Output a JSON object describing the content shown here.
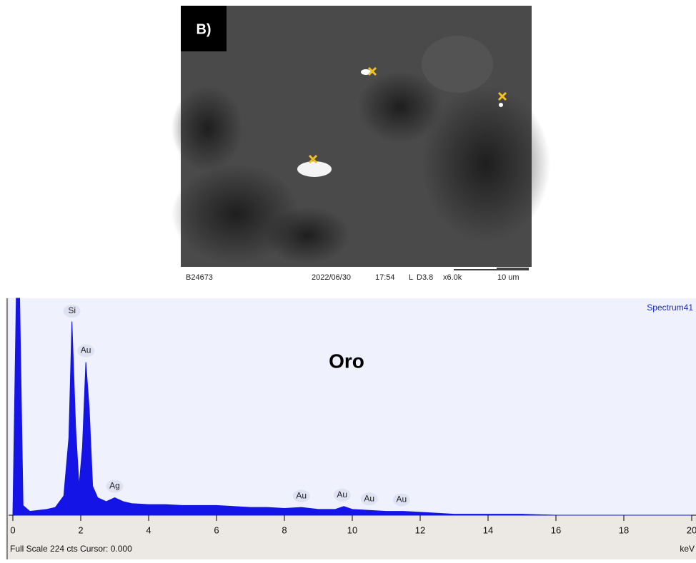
{
  "image": {
    "label": "B)",
    "footer": [
      "B24673",
      "2022/06/30",
      "17:54",
      "L",
      "D3.8",
      "x6.0k",
      "10 um"
    ]
  },
  "chart_data": {
    "type": "area",
    "title": "Oro",
    "subtitle": "Spectrum41",
    "color": "#1414e6",
    "x": [
      0,
      0.1,
      0.2,
      0.3,
      0.5,
      0.75,
      1.0,
      1.25,
      1.5,
      1.65,
      1.74,
      1.85,
      1.95,
      2.05,
      2.15,
      2.25,
      2.35,
      2.5,
      2.75,
      3.0,
      3.25,
      3.5,
      4,
      4.5,
      5,
      5.5,
      6,
      6.5,
      7,
      7.5,
      8,
      8.5,
      9,
      9.5,
      9.75,
      10,
      10.5,
      11,
      11.5,
      12,
      12.5,
      13,
      14,
      15,
      16,
      18,
      20
    ],
    "values": [
      0,
      224,
      224,
      10,
      4,
      5,
      6,
      8,
      20,
      80,
      200,
      90,
      30,
      70,
      158,
      110,
      30,
      18,
      14,
      18,
      14,
      12,
      11,
      11,
      10,
      10,
      10,
      9,
      8,
      8,
      7,
      8,
      6,
      6,
      9,
      6,
      5,
      4,
      4,
      3,
      2,
      1,
      1,
      1,
      0,
      0,
      0
    ],
    "xlim": [
      0,
      20
    ],
    "ylim": [
      0,
      224
    ],
    "xticks": [
      0,
      2,
      4,
      6,
      8,
      10,
      12,
      14,
      16,
      18,
      20
    ],
    "xlabel": "keV",
    "annotations": [
      {
        "text": "Si",
        "x": 1.74
      },
      {
        "text": "Au",
        "x": 2.15
      },
      {
        "text": "Ag",
        "x": 3.0
      },
      {
        "text": "Au",
        "x": 8.5
      },
      {
        "text": "Au",
        "x": 9.7
      },
      {
        "text": "Au",
        "x": 10.5
      },
      {
        "text": "Au",
        "x": 11.45
      }
    ],
    "footer": "Full Scale 224 cts Cursor: 0.000"
  }
}
